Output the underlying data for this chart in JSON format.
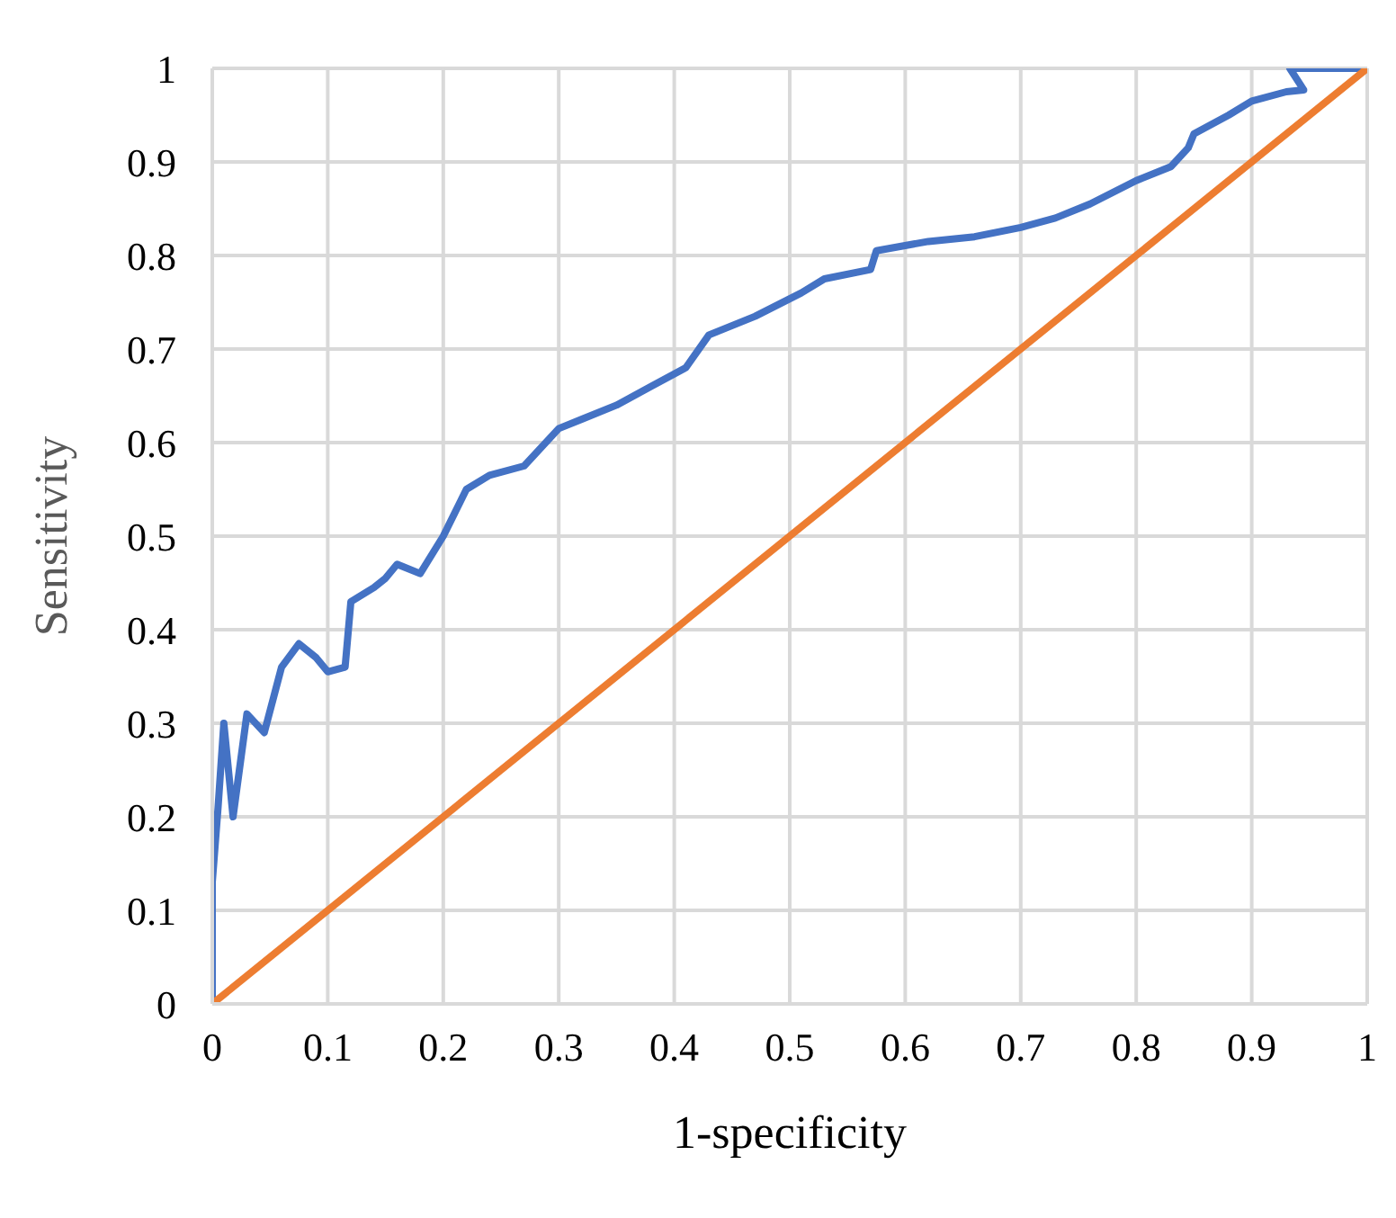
{
  "chart_data": {
    "type": "line",
    "xlabel": "1-specificity",
    "ylabel": "Sensitivity",
    "xlim": [
      0,
      1
    ],
    "ylim": [
      0,
      1
    ],
    "xticks": [
      0,
      0.1,
      0.2,
      0.3,
      0.4,
      0.5,
      0.6,
      0.7,
      0.8,
      0.9,
      1
    ],
    "yticks": [
      0,
      0.1,
      0.2,
      0.3,
      0.4,
      0.5,
      0.6,
      0.7,
      0.8,
      0.9,
      1
    ],
    "grid": true,
    "marker": "none",
    "line_style": "solid",
    "series": [
      {
        "color": "#4472c4",
        "x": [
          0,
          0,
          0.005,
          0.01,
          0.018,
          0.03,
          0.045,
          0.06,
          0.075,
          0.09,
          0.1,
          0.115,
          0.12,
          0.14,
          0.15,
          0.16,
          0.18,
          0.2,
          0.22,
          0.24,
          0.27,
          0.3,
          0.32,
          0.35,
          0.38,
          0.41,
          0.43,
          0.47,
          0.51,
          0.53,
          0.57,
          0.575,
          0.62,
          0.66,
          0.7,
          0.73,
          0.76,
          0.8,
          0.83,
          0.845,
          0.85,
          0.88,
          0.9,
          0.93,
          0.945,
          0.933,
          1
        ],
        "values": [
          0,
          0.13,
          0.21,
          0.3,
          0.2,
          0.31,
          0.29,
          0.36,
          0.385,
          0.37,
          0.355,
          0.36,
          0.43,
          0.445,
          0.455,
          0.47,
          0.46,
          0.5,
          0.55,
          0.565,
          0.575,
          0.615,
          0.625,
          0.64,
          0.66,
          0.68,
          0.715,
          0.735,
          0.76,
          0.775,
          0.785,
          0.805,
          0.815,
          0.82,
          0.83,
          0.84,
          0.855,
          0.88,
          0.895,
          0.915,
          0.93,
          0.95,
          0.965,
          0.975,
          0.977,
          1,
          1
        ]
      },
      {
        "color": "#ed7d31",
        "x": [
          0,
          1
        ],
        "values": [
          0,
          1
        ]
      }
    ]
  }
}
